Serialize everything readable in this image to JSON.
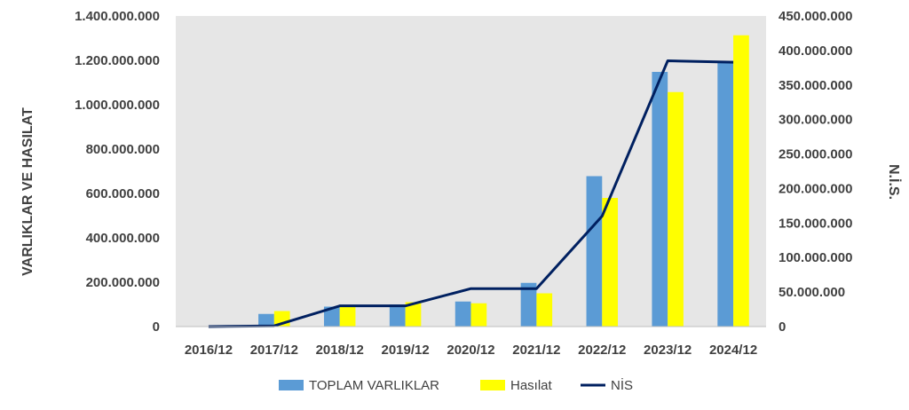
{
  "chart_data": {
    "type": "bar",
    "categories": [
      "2016/12",
      "2017/12",
      "2018/12",
      "2019/12",
      "2020/12",
      "2021/12",
      "2022/12",
      "2023/12",
      "2024/12"
    ],
    "series": [
      {
        "name": "TOPLAM VARLIKLAR",
        "type": "bar",
        "axis": "left",
        "color": "#5B9BD5",
        "values": [
          0,
          57000000,
          90000000,
          100000000,
          113000000,
          197000000,
          678000000,
          1148000000,
          1192000000
        ]
      },
      {
        "name": "Hasılat",
        "type": "bar",
        "axis": "left",
        "color": "#FFFF00",
        "values": [
          0,
          70000000,
          88000000,
          110000000,
          105000000,
          150000000,
          580000000,
          1057000000,
          1313000000
        ]
      },
      {
        "name": "NİS",
        "type": "line",
        "axis": "right",
        "color": "#002060",
        "values": [
          0,
          1000000,
          30000000,
          30000000,
          55000000,
          55000000,
          160000000,
          385000000,
          383000000
        ]
      }
    ],
    "ylabel": "VARLIKLAR VE HASILAT",
    "y2label": "N.İ.S.",
    "ylim": [
      0,
      1400000000
    ],
    "y2lim": [
      0,
      450000000
    ],
    "yticks": [
      "0",
      "200.000.000",
      "400.000.000",
      "600.000.000",
      "800.000.000",
      "1.000.000.000",
      "1.200.000.000",
      "1.400.000.000"
    ],
    "y2ticks": [
      "0",
      "50.000.000",
      "100.000.000",
      "150.000.000",
      "200.000.000",
      "250.000.000",
      "300.000.000",
      "350.000.000",
      "400.000.000",
      "450.000.000"
    ],
    "grid": false,
    "plot_background": "#E6E6E6",
    "legend_position": "bottom"
  }
}
